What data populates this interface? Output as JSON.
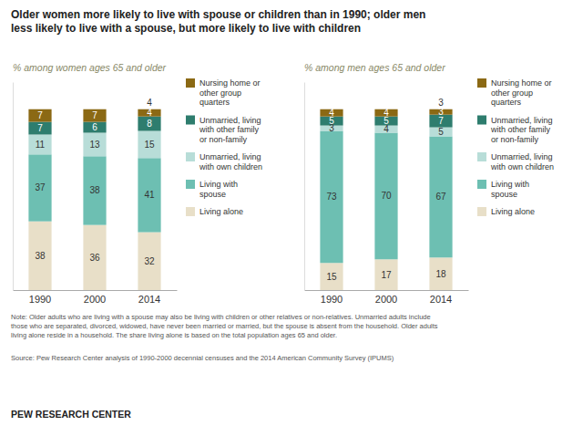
{
  "title": "Older women more likely to live with spouse or children than in 1990; older men\nless likely to live with a spouse, but more likely to live with children",
  "note": "Note: Older adults who are living with a spouse may also be living with children or other relatives or non-relatives. Unmarried adults include\nthose who are separated, divorced, widowed, have never been married or married, but the spouse is absent from the household. Older adults\nliving alone reside in a household. The share living alone is based on the total population ages 65 and older.",
  "source": "Source: Pew Research Center analysis of 1990-2000 decennial censuses and the 2014 American Community Survey (IPUMS)",
  "footer": "PEW RESEARCH CENTER",
  "chart_data": [
    {
      "type": "bar",
      "stacked": true,
      "subtitle": "% among women ages 65 and older",
      "categories": [
        "1990",
        "2000",
        "2014"
      ],
      "series": [
        {
          "name": "Living alone",
          "color": "#e8dfc8",
          "values": [
            38,
            36,
            32
          ]
        },
        {
          "name": "Living with\nspouse",
          "color": "#6dbfb2",
          "values": [
            37,
            38,
            41
          ]
        },
        {
          "name": "Unmarried, living\nwith own children",
          "color": "#b8ddd8",
          "values": [
            11,
            13,
            15
          ]
        },
        {
          "name": "Unmarried, living\nwith other family\nor non-family",
          "color": "#2e7d6e",
          "values": [
            7,
            6,
            8
          ]
        },
        {
          "name": "Nursing home or\nother group\nquarters",
          "color": "#8b6914",
          "values": [
            7,
            7,
            4
          ]
        }
      ],
      "ylim": [
        0,
        115
      ],
      "tick_labels": "x",
      "grid": false,
      "data_labels": true,
      "legend": "right",
      "annotations": [
        {
          "category": "2014",
          "text": "4"
        }
      ]
    },
    {
      "type": "bar",
      "stacked": true,
      "subtitle": "% among men ages 65 and older",
      "categories": [
        "1990",
        "2000",
        "2014"
      ],
      "series": [
        {
          "name": "Living alone",
          "color": "#e8dfc8",
          "values": [
            15,
            17,
            18
          ]
        },
        {
          "name": "Living with\nspouse",
          "color": "#6dbfb2",
          "values": [
            73,
            70,
            67
          ]
        },
        {
          "name": "Unmarried, living\nwith own children",
          "color": "#b8ddd8",
          "values": [
            3,
            4,
            5
          ]
        },
        {
          "name": "Unmarried, living\nwith other family\nor non-family",
          "color": "#2e7d6e",
          "values": [
            5,
            5,
            7
          ]
        },
        {
          "name": "Nursing home or\nother group\nquarters",
          "color": "#8b6914",
          "values": [
            4,
            4,
            3
          ]
        }
      ],
      "ylim": [
        0,
        115
      ],
      "tick_labels": "x",
      "grid": false,
      "data_labels": true,
      "legend": "right",
      "annotations": [
        {
          "category": "2014",
          "text": "3"
        }
      ]
    }
  ]
}
